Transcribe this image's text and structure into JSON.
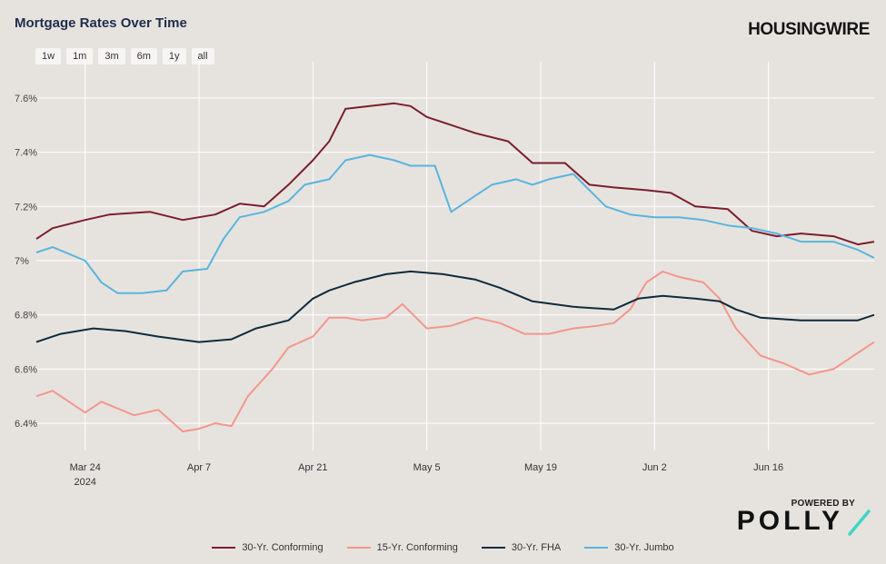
{
  "header": {
    "title": "Mortgage Rates Over Time",
    "brand": "HOUSINGWIRE"
  },
  "range_buttons": [
    "1w",
    "1m",
    "3m",
    "6m",
    "1y",
    "all"
  ],
  "footer": {
    "powered_by": "POWERED BY",
    "polly": "POLLY",
    "polly_accent": "#3ed6c4"
  },
  "chart_data": {
    "type": "line",
    "title": "Mortgage Rates Over Time",
    "x_type": "date",
    "xlim": [
      "2024-03-18",
      "2024-06-29"
    ],
    "ylim": [
      6.3,
      7.7
    ],
    "y_ticks": [
      6.4,
      6.6,
      6.8,
      7.0,
      7.2,
      7.4,
      7.6
    ],
    "y_tick_labels": [
      "6.4%",
      "6.6%",
      "6.8%",
      "7%",
      "7.2%",
      "7.4%",
      "7.6%"
    ],
    "x_ticks": [
      "2024-03-24",
      "2024-04-07",
      "2024-04-21",
      "2024-05-05",
      "2024-05-19",
      "2024-06-02",
      "2024-06-16"
    ],
    "x_tick_labels": [
      "Mar 24",
      "Apr 7",
      "Apr 21",
      "May 5",
      "May 19",
      "Jun 2",
      "Jun 16"
    ],
    "x_year_label": "2024",
    "grid": "horizontal-and-vertical",
    "legend_position": "bottom",
    "series": [
      {
        "name": "30-Yr. Conforming",
        "color": "#7b1e2b",
        "x": [
          "2024-03-18",
          "2024-03-20",
          "2024-03-24",
          "2024-03-27",
          "2024-04-01",
          "2024-04-05",
          "2024-04-09",
          "2024-04-12",
          "2024-04-15",
          "2024-04-18",
          "2024-04-21",
          "2024-04-23",
          "2024-04-25",
          "2024-04-28",
          "2024-05-01",
          "2024-05-03",
          "2024-05-05",
          "2024-05-08",
          "2024-05-11",
          "2024-05-15",
          "2024-05-18",
          "2024-05-22",
          "2024-05-25",
          "2024-05-28",
          "2024-06-01",
          "2024-06-04",
          "2024-06-07",
          "2024-06-11",
          "2024-06-14",
          "2024-06-17",
          "2024-06-20",
          "2024-06-24",
          "2024-06-27",
          "2024-06-29"
        ],
        "values": [
          7.08,
          7.12,
          7.15,
          7.17,
          7.18,
          7.15,
          7.17,
          7.21,
          7.2,
          7.28,
          7.37,
          7.44,
          7.56,
          7.57,
          7.58,
          7.57,
          7.53,
          7.5,
          7.47,
          7.44,
          7.36,
          7.36,
          7.28,
          7.27,
          7.26,
          7.25,
          7.2,
          7.19,
          7.11,
          7.09,
          7.1,
          7.09,
          7.06,
          7.07
        ]
      },
      {
        "name": "15-Yr. Conforming",
        "color": "#f4968c",
        "x": [
          "2024-03-18",
          "2024-03-20",
          "2024-03-24",
          "2024-03-26",
          "2024-03-30",
          "2024-04-02",
          "2024-04-05",
          "2024-04-07",
          "2024-04-09",
          "2024-04-11",
          "2024-04-13",
          "2024-04-16",
          "2024-04-18",
          "2024-04-21",
          "2024-04-23",
          "2024-04-25",
          "2024-04-27",
          "2024-04-30",
          "2024-05-02",
          "2024-05-05",
          "2024-05-08",
          "2024-05-11",
          "2024-05-14",
          "2024-05-17",
          "2024-05-20",
          "2024-05-23",
          "2024-05-26",
          "2024-05-28",
          "2024-05-30",
          "2024-06-01",
          "2024-06-03",
          "2024-06-05",
          "2024-06-08",
          "2024-06-10",
          "2024-06-12",
          "2024-06-15",
          "2024-06-18",
          "2024-06-21",
          "2024-06-24",
          "2024-06-27",
          "2024-06-29"
        ],
        "values": [
          6.5,
          6.52,
          6.44,
          6.48,
          6.43,
          6.45,
          6.37,
          6.38,
          6.4,
          6.39,
          6.5,
          6.6,
          6.68,
          6.72,
          6.79,
          6.79,
          6.78,
          6.79,
          6.84,
          6.75,
          6.76,
          6.79,
          6.77,
          6.73,
          6.73,
          6.75,
          6.76,
          6.77,
          6.82,
          6.92,
          6.96,
          6.94,
          6.92,
          6.86,
          6.75,
          6.65,
          6.62,
          6.58,
          6.6,
          6.66,
          6.7
        ]
      },
      {
        "name": "30-Yr. FHA",
        "color": "#0f2b3d",
        "x": [
          "2024-03-18",
          "2024-03-21",
          "2024-03-25",
          "2024-03-29",
          "2024-04-02",
          "2024-04-07",
          "2024-04-11",
          "2024-04-14",
          "2024-04-18",
          "2024-04-21",
          "2024-04-23",
          "2024-04-26",
          "2024-04-30",
          "2024-05-03",
          "2024-05-07",
          "2024-05-11",
          "2024-05-14",
          "2024-05-18",
          "2024-05-23",
          "2024-05-28",
          "2024-05-31",
          "2024-06-03",
          "2024-06-07",
          "2024-06-10",
          "2024-06-12",
          "2024-06-15",
          "2024-06-20",
          "2024-06-24",
          "2024-06-27",
          "2024-06-29"
        ],
        "values": [
          6.7,
          6.73,
          6.75,
          6.74,
          6.72,
          6.7,
          6.71,
          6.75,
          6.78,
          6.86,
          6.89,
          6.92,
          6.95,
          6.96,
          6.95,
          6.93,
          6.9,
          6.85,
          6.83,
          6.82,
          6.86,
          6.87,
          6.86,
          6.85,
          6.82,
          6.79,
          6.78,
          6.78,
          6.78,
          6.8
        ]
      },
      {
        "name": "30-Yr. Jumbo",
        "color": "#5ab4de",
        "x": [
          "2024-03-18",
          "2024-03-20",
          "2024-03-24",
          "2024-03-26",
          "2024-03-28",
          "2024-03-31",
          "2024-04-03",
          "2024-04-05",
          "2024-04-08",
          "2024-04-10",
          "2024-04-12",
          "2024-04-15",
          "2024-04-18",
          "2024-04-20",
          "2024-04-23",
          "2024-04-25",
          "2024-04-28",
          "2024-05-01",
          "2024-05-03",
          "2024-05-06",
          "2024-05-08",
          "2024-05-10",
          "2024-05-13",
          "2024-05-16",
          "2024-05-18",
          "2024-05-20",
          "2024-05-23",
          "2024-05-25",
          "2024-05-27",
          "2024-05-30",
          "2024-06-02",
          "2024-06-05",
          "2024-06-08",
          "2024-06-11",
          "2024-06-14",
          "2024-06-17",
          "2024-06-20",
          "2024-06-24",
          "2024-06-27",
          "2024-06-29"
        ],
        "values": [
          7.03,
          7.05,
          7.0,
          6.92,
          6.88,
          6.88,
          6.89,
          6.96,
          6.97,
          7.08,
          7.16,
          7.18,
          7.22,
          7.28,
          7.3,
          7.37,
          7.39,
          7.37,
          7.35,
          7.35,
          7.18,
          7.22,
          7.28,
          7.3,
          7.28,
          7.3,
          7.32,
          7.26,
          7.2,
          7.17,
          7.16,
          7.16,
          7.15,
          7.13,
          7.12,
          7.1,
          7.07,
          7.07,
          7.04,
          7.01
        ]
      }
    ]
  }
}
